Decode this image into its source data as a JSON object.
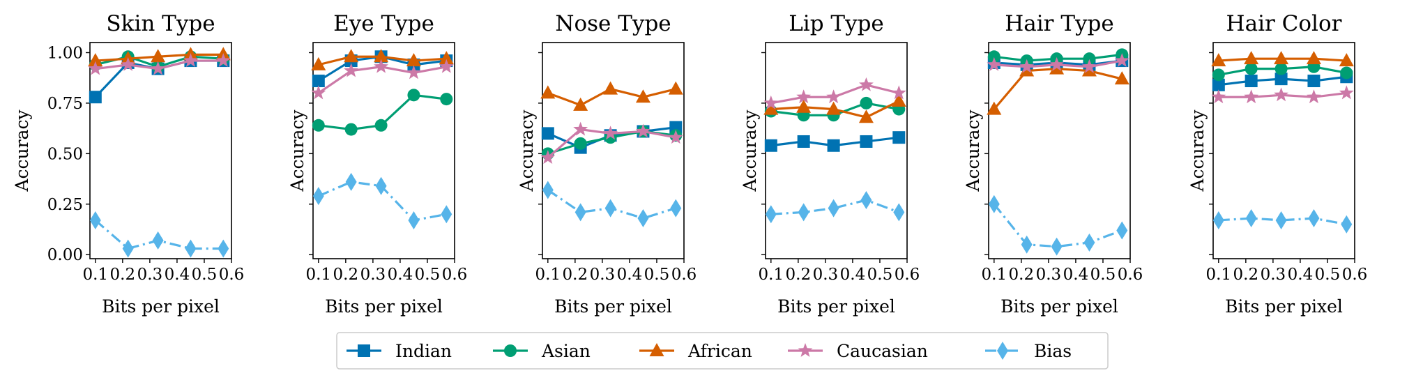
{
  "colors": {
    "Indian": "#0072b2",
    "Asian": "#009e73",
    "African": "#d55e00",
    "Caucasian": "#cc79a7",
    "Bias": "#56b4e9"
  },
  "legend": {
    "placement": "bottom-center",
    "entries": [
      "Indian",
      "Asian",
      "African",
      "Caucasian",
      "Bias"
    ]
  },
  "chart_data": [
    {
      "type": "line",
      "title": "Skin Type",
      "xlabel": "Bits per pixel",
      "ylabel": "Accuracy",
      "xlim": [
        0.08,
        0.6
      ],
      "ylim": [
        -0.02,
        1.05
      ],
      "xticks": [
        "0.1",
        "0.2",
        "0.3",
        "0.4",
        "0.5",
        "0.6"
      ],
      "yticks": [
        "0.00",
        "0.25",
        "0.50",
        "0.75",
        "1.00"
      ],
      "x": [
        0.1,
        0.22,
        0.33,
        0.45,
        0.57
      ],
      "series": [
        {
          "name": "Indian",
          "values": [
            0.78,
            0.95,
            0.92,
            0.96,
            0.96
          ]
        },
        {
          "name": "Asian",
          "values": [
            0.94,
            0.98,
            0.93,
            0.98,
            0.97
          ]
        },
        {
          "name": "African",
          "values": [
            0.96,
            0.97,
            0.98,
            0.99,
            0.99
          ]
        },
        {
          "name": "Caucasian",
          "values": [
            0.92,
            0.94,
            0.92,
            0.96,
            0.96
          ]
        },
        {
          "name": "Bias",
          "values": [
            0.17,
            0.03,
            0.07,
            0.03,
            0.03
          ]
        }
      ]
    },
    {
      "type": "line",
      "title": "Eye Type",
      "xlabel": "Bits per pixel",
      "ylabel": "Accuracy",
      "xlim": [
        0.08,
        0.6
      ],
      "ylim": [
        -0.02,
        1.05
      ],
      "xticks": [
        "0.1",
        "0.2",
        "0.3",
        "0.4",
        "0.5",
        "0.6"
      ],
      "yticks": [
        "0.00",
        "0.25",
        "0.50",
        "0.75",
        "1.00"
      ],
      "x": [
        0.1,
        0.22,
        0.33,
        0.45,
        0.57
      ],
      "series": [
        {
          "name": "Indian",
          "values": [
            0.86,
            0.96,
            0.98,
            0.94,
            0.96
          ]
        },
        {
          "name": "Asian",
          "values": [
            0.64,
            0.62,
            0.64,
            0.79,
            0.77
          ]
        },
        {
          "name": "African",
          "values": [
            0.94,
            0.98,
            0.98,
            0.96,
            0.97
          ]
        },
        {
          "name": "Caucasian",
          "values": [
            0.8,
            0.91,
            0.93,
            0.9,
            0.93
          ]
        },
        {
          "name": "Bias",
          "values": [
            0.29,
            0.36,
            0.34,
            0.17,
            0.2
          ]
        }
      ]
    },
    {
      "type": "line",
      "title": "Nose Type",
      "xlabel": "Bits per pixel",
      "ylabel": "Accuracy",
      "xlim": [
        0.08,
        0.6
      ],
      "ylim": [
        -0.02,
        1.05
      ],
      "xticks": [
        "0.1",
        "0.2",
        "0.3",
        "0.4",
        "0.5",
        "0.6"
      ],
      "yticks": [
        "0.00",
        "0.25",
        "0.50",
        "0.75",
        "1.00"
      ],
      "x": [
        0.1,
        0.22,
        0.33,
        0.45,
        0.57
      ],
      "series": [
        {
          "name": "Indian",
          "values": [
            0.6,
            0.53,
            0.59,
            0.61,
            0.63
          ]
        },
        {
          "name": "Asian",
          "values": [
            0.5,
            0.55,
            0.58,
            0.61,
            0.59
          ]
        },
        {
          "name": "African",
          "values": [
            0.8,
            0.74,
            0.82,
            0.78,
            0.82
          ]
        },
        {
          "name": "Caucasian",
          "values": [
            0.48,
            0.62,
            0.6,
            0.61,
            0.58
          ]
        },
        {
          "name": "Bias",
          "values": [
            0.32,
            0.21,
            0.23,
            0.18,
            0.23
          ]
        }
      ]
    },
    {
      "type": "line",
      "title": "Lip Type",
      "xlabel": "Bits per pixel",
      "ylabel": "Accuracy",
      "xlim": [
        0.08,
        0.6
      ],
      "ylim": [
        -0.02,
        1.05
      ],
      "xticks": [
        "0.1",
        "0.2",
        "0.3",
        "0.4",
        "0.5",
        "0.6"
      ],
      "yticks": [
        "0.00",
        "0.25",
        "0.50",
        "0.75",
        "1.00"
      ],
      "x": [
        0.1,
        0.22,
        0.33,
        0.45,
        0.57
      ],
      "series": [
        {
          "name": "Indian",
          "values": [
            0.54,
            0.56,
            0.54,
            0.56,
            0.58
          ]
        },
        {
          "name": "Asian",
          "values": [
            0.71,
            0.69,
            0.69,
            0.75,
            0.72
          ]
        },
        {
          "name": "African",
          "values": [
            0.72,
            0.73,
            0.72,
            0.68,
            0.76
          ]
        },
        {
          "name": "Caucasian",
          "values": [
            0.75,
            0.78,
            0.78,
            0.84,
            0.8
          ]
        },
        {
          "name": "Bias",
          "values": [
            0.2,
            0.21,
            0.23,
            0.27,
            0.21
          ]
        }
      ]
    },
    {
      "type": "line",
      "title": "Hair Type",
      "xlabel": "Bits per pixel",
      "ylabel": "Accuracy",
      "xlim": [
        0.08,
        0.6
      ],
      "ylim": [
        -0.02,
        1.05
      ],
      "xticks": [
        "0.1",
        "0.2",
        "0.3",
        "0.4",
        "0.5",
        "0.6"
      ],
      "yticks": [
        "0.00",
        "0.25",
        "0.50",
        "0.75",
        "1.00"
      ],
      "x": [
        0.1,
        0.22,
        0.33,
        0.45,
        0.57
      ],
      "series": [
        {
          "name": "Indian",
          "values": [
            0.95,
            0.94,
            0.95,
            0.94,
            0.96
          ]
        },
        {
          "name": "Asian",
          "values": [
            0.98,
            0.96,
            0.97,
            0.97,
            0.99
          ]
        },
        {
          "name": "African",
          "values": [
            0.72,
            0.91,
            0.92,
            0.91,
            0.87
          ]
        },
        {
          "name": "Caucasian",
          "values": [
            0.94,
            0.93,
            0.94,
            0.93,
            0.96
          ]
        },
        {
          "name": "Bias",
          "values": [
            0.25,
            0.05,
            0.04,
            0.06,
            0.12
          ]
        }
      ]
    },
    {
      "type": "line",
      "title": "Hair Color",
      "xlabel": "Bits per pixel",
      "ylabel": "Accuracy",
      "xlim": [
        0.08,
        0.6
      ],
      "ylim": [
        -0.02,
        1.05
      ],
      "xticks": [
        "0.1",
        "0.2",
        "0.3",
        "0.4",
        "0.5",
        "0.6"
      ],
      "yticks": [
        "0.00",
        "0.25",
        "0.50",
        "0.75",
        "1.00"
      ],
      "x": [
        0.1,
        0.22,
        0.33,
        0.45,
        0.57
      ],
      "series": [
        {
          "name": "Indian",
          "values": [
            0.84,
            0.86,
            0.87,
            0.86,
            0.88
          ]
        },
        {
          "name": "Asian",
          "values": [
            0.89,
            0.92,
            0.92,
            0.93,
            0.9
          ]
        },
        {
          "name": "African",
          "values": [
            0.96,
            0.97,
            0.97,
            0.97,
            0.96
          ]
        },
        {
          "name": "Caucasian",
          "values": [
            0.78,
            0.78,
            0.79,
            0.78,
            0.8
          ]
        },
        {
          "name": "Bias",
          "values": [
            0.17,
            0.18,
            0.17,
            0.18,
            0.15
          ]
        }
      ]
    }
  ]
}
